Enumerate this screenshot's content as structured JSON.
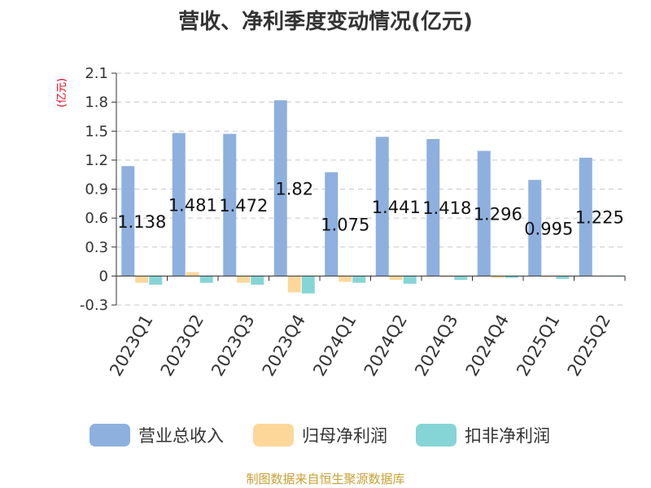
{
  "chart_data": {
    "type": "bar",
    "title": "营收、净利季度变动情况(亿元)",
    "ylabel": "(亿元)",
    "xlabel": "",
    "source": "制图数据来自恒生聚源数据库",
    "categories": [
      "2023Q1",
      "2023Q2",
      "2023Q3",
      "2023Q4",
      "2024Q1",
      "2024Q2",
      "2024Q3",
      "2024Q4",
      "2025Q1",
      "2025Q2"
    ],
    "y_ticks": [
      "2.1",
      "1.8",
      "1.5",
      "1.2",
      "0.9",
      "0.6",
      "0.3",
      "0",
      "-0.3"
    ],
    "ylim": [
      -0.3,
      2.1
    ],
    "grid": true,
    "legend_position": "bottom",
    "series": [
      {
        "name": "营业总收入",
        "color": "#8eb0de",
        "values": [
          1.138,
          1.481,
          1.472,
          1.82,
          1.075,
          1.441,
          1.418,
          1.296,
          0.995,
          1.225
        ],
        "labels": [
          "1.138",
          "1.481",
          "1.472",
          "1.82",
          "1.075",
          "1.441",
          "1.418",
          "1.296",
          "0.995",
          "1.225"
        ]
      },
      {
        "name": "归母净利润",
        "color": "#fdd79a",
        "values": [
          -0.07,
          0.04,
          -0.07,
          -0.17,
          -0.06,
          -0.04,
          -0.01,
          -0.02,
          -0.01,
          -0.005
        ]
      },
      {
        "name": "扣非净利润",
        "color": "#86d5d6",
        "values": [
          -0.09,
          -0.07,
          -0.09,
          -0.18,
          -0.07,
          -0.08,
          -0.04,
          -0.02,
          -0.03,
          -0.005
        ]
      }
    ]
  }
}
